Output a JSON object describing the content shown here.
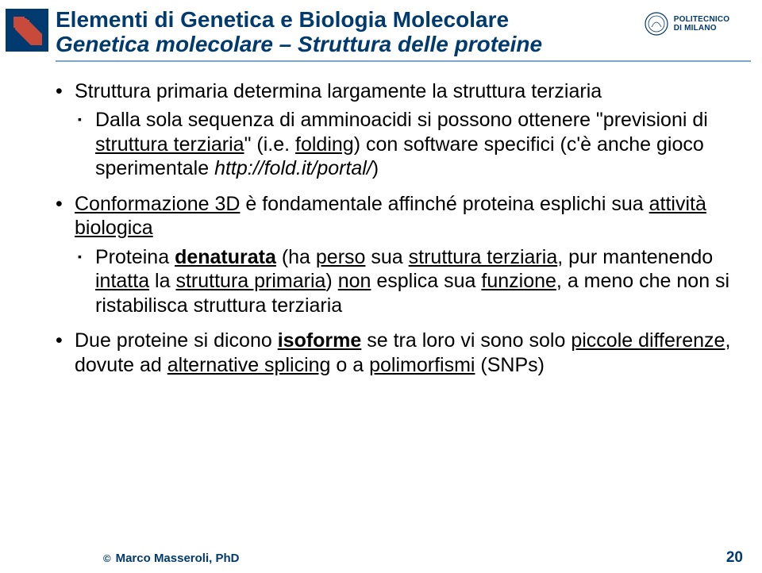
{
  "colors": {
    "brand_blue": "#003a6e",
    "divider_blue": "#7ea6c9",
    "arrow_fill": "#c84a3a",
    "arrow_bg": "#003a6e",
    "text_black": "#000000",
    "background": "#ffffff"
  },
  "typography": {
    "title_fontsize": 28,
    "body_fontsize": 25,
    "footer_fontsize": 15,
    "pagenum_fontsize": 19
  },
  "header": {
    "title_line1": "Elementi di Genetica e Biologia Molecolare",
    "title_line2": "Genetica molecolare – Struttura delle proteine",
    "institution_line1": "POLITECNICO",
    "institution_line2": "DI MILANO"
  },
  "bullets": [
    {
      "parts": [
        {
          "t": "Struttura primaria determina largamente la struttura terziaria"
        }
      ],
      "sub": [
        {
          "parts": [
            {
              "t": "Dalla sola sequenza di amminoacidi si possono ottenere \"previsioni di "
            },
            {
              "t": "struttura terziaria",
              "u": true
            },
            {
              "t": "\" (i.e. "
            },
            {
              "t": "folding",
              "u": true
            },
            {
              "t": ") con software specifici (c'è anche gioco sperimentale "
            },
            {
              "t": "http://fold.it/portal/",
              "i": true
            },
            {
              "t": ")"
            }
          ]
        }
      ]
    },
    {
      "parts": [
        {
          "t": "Conformazione 3D",
          "u": true
        },
        {
          "t": " è fondamentale affinché proteina esplichi sua "
        },
        {
          "t": "attività biologica",
          "u": true
        }
      ],
      "sub": [
        {
          "parts": [
            {
              "t": "Proteina "
            },
            {
              "t": "denaturata",
              "b": true,
              "u": true
            },
            {
              "t": " (ha "
            },
            {
              "t": "perso",
              "u": true
            },
            {
              "t": " sua "
            },
            {
              "t": "struttura terziaria",
              "u": true
            },
            {
              "t": ", pur mantenendo "
            },
            {
              "t": "intatta",
              "u": true
            },
            {
              "t": " la "
            },
            {
              "t": "struttura primaria",
              "u": true
            },
            {
              "t": ") "
            },
            {
              "t": "non",
              "u": true
            },
            {
              "t": " esplica sua "
            },
            {
              "t": "funzione",
              "u": true
            },
            {
              "t": ", a meno che non si ristabilisca struttura terziaria"
            }
          ]
        }
      ]
    },
    {
      "parts": [
        {
          "t": "Due proteine si dicono "
        },
        {
          "t": "isoforme",
          "b": true,
          "u": true
        },
        {
          "t": " se tra loro vi sono solo "
        },
        {
          "t": "piccole differenze",
          "u": true
        },
        {
          "t": ", dovute ad "
        },
        {
          "t": "alternative splicing",
          "u": true
        },
        {
          "t": " o a "
        },
        {
          "t": "polimorfismi",
          "u": true
        },
        {
          "t": " (SNPs)"
        }
      ]
    }
  ],
  "footer": {
    "copyright": "©",
    "author": "Marco Masseroli, PhD",
    "page": "20"
  }
}
